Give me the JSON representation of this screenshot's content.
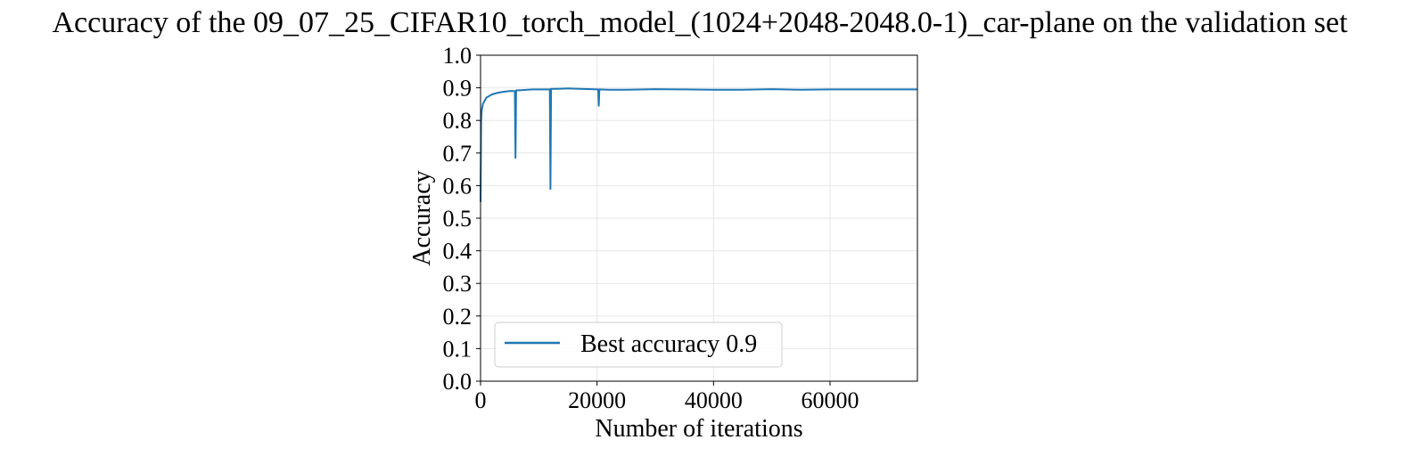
{
  "chart_data": {
    "type": "line",
    "title": "Accuracy of the 09_07_25_CIFAR10_torch_model_(1024+2048-2048.0-1)_car-plane on the validation set",
    "xlabel": "Number of iterations",
    "ylabel": "Accuracy",
    "xlim": [
      0,
      75000
    ],
    "ylim": [
      0.0,
      1.0
    ],
    "x_ticks": [
      0,
      20000,
      40000,
      60000
    ],
    "x_tick_labels": [
      "0",
      "20000",
      "40000",
      "60000"
    ],
    "y_ticks": [
      0.0,
      0.1,
      0.2,
      0.3,
      0.4,
      0.5,
      0.6,
      0.7,
      0.8,
      0.9,
      1.0
    ],
    "y_tick_labels": [
      "0.0",
      "0.1",
      "0.2",
      "0.3",
      "0.4",
      "0.5",
      "0.6",
      "0.7",
      "0.8",
      "0.9",
      "1.0"
    ],
    "grid": true,
    "legend_position": "lower left",
    "series": [
      {
        "name": "Best accuracy 0.9",
        "color": "#1f77b4",
        "x": [
          0,
          100,
          200,
          400,
          700,
          1000,
          1500,
          2000,
          3000,
          4000,
          5000,
          5900,
          6000,
          6100,
          7000,
          8000,
          9000,
          10000,
          11000,
          11900,
          12000,
          12100,
          13000,
          15000,
          17000,
          19000,
          20200,
          20300,
          20400,
          22000,
          25000,
          30000,
          35000,
          40000,
          45000,
          50000,
          52000,
          55000,
          60000,
          65000,
          70000,
          75000
        ],
        "values": [
          0.55,
          0.8,
          0.83,
          0.85,
          0.86,
          0.87,
          0.875,
          0.88,
          0.885,
          0.888,
          0.89,
          0.89,
          0.685,
          0.892,
          0.893,
          0.894,
          0.895,
          0.895,
          0.895,
          0.895,
          0.59,
          0.897,
          0.897,
          0.898,
          0.897,
          0.896,
          0.895,
          0.845,
          0.895,
          0.894,
          0.894,
          0.896,
          0.895,
          0.894,
          0.894,
          0.896,
          0.895,
          0.894,
          0.895,
          0.895,
          0.895,
          0.895
        ]
      }
    ]
  }
}
